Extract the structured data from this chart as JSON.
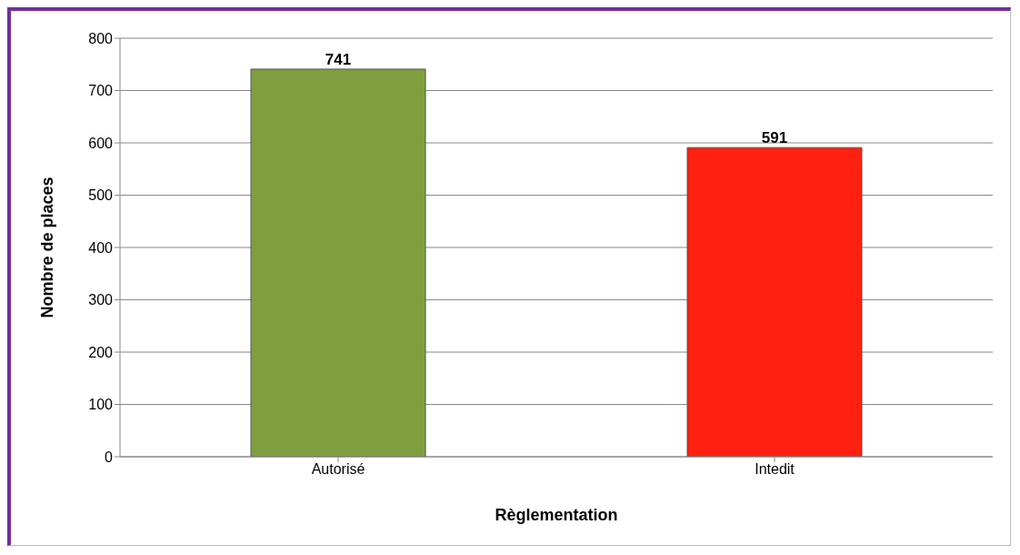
{
  "chart_data": {
    "type": "bar",
    "xlabel": "Règlementation",
    "ylabel": "Nombre de places",
    "categories": [
      "Autorisé",
      "Intedit"
    ],
    "values": [
      741,
      591
    ],
    "colors": [
      "#7f9f3f",
      "#ff2010"
    ],
    "ylim": [
      0,
      800
    ],
    "yticks": [
      0,
      100,
      200,
      300,
      400,
      500,
      600,
      700,
      800
    ],
    "grid": "y",
    "data_labels": true
  }
}
